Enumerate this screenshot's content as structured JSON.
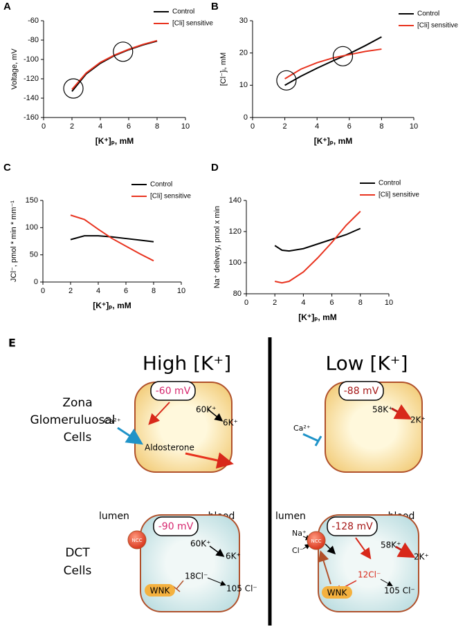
{
  "chart_data": [
    {
      "type": "line",
      "panel": "A",
      "y_label": "Voltage, mV",
      "x_label": "[K⁺]ₚ, mM",
      "x": [
        2,
        3,
        4,
        5,
        6,
        7,
        8
      ],
      "xlim": [
        0,
        10
      ],
      "xticks": [
        0,
        2,
        4,
        6,
        8,
        10
      ],
      "ylim": [
        -160,
        -60
      ],
      "yticks": [
        -160,
        -140,
        -120,
        -100,
        -80,
        -60
      ],
      "series": [
        {
          "name": "Control",
          "color": "#000000",
          "values": [
            -133,
            -115,
            -104,
            -96,
            -90,
            -85,
            -81
          ]
        },
        {
          "name": "[Cli] sensitive",
          "color": "#e8321e",
          "values": [
            -131,
            -114,
            -103,
            -95.5,
            -89.5,
            -84.5,
            -80.5
          ]
        }
      ],
      "highlights": {
        "x": [
          2.1,
          5.6
        ],
        "y": [
          -130,
          -92
        ]
      }
    },
    {
      "type": "line",
      "panel": "B",
      "y_label": "[Cl⁻]ᵢ, mM",
      "x_label": "[K⁺]ₚ, mM",
      "x": [
        2,
        3,
        4,
        5,
        6,
        7,
        8
      ],
      "xlim": [
        0,
        10
      ],
      "xticks": [
        0,
        2,
        4,
        6,
        8,
        10
      ],
      "ylim": [
        0,
        30
      ],
      "yticks": [
        0,
        10,
        20,
        30
      ],
      "series": [
        {
          "name": "Control",
          "color": "#000000",
          "values": [
            10,
            12.8,
            15.3,
            17.6,
            19.8,
            22.3,
            25
          ]
        },
        {
          "name": "[Cli] sensitive",
          "color": "#e8321e",
          "values": [
            12,
            15,
            17,
            18.5,
            19.5,
            20.5,
            21.2
          ]
        }
      ],
      "highlights": {
        "x": [
          2.1,
          5.6
        ],
        "y": [
          11.5,
          19
        ]
      }
    },
    {
      "type": "line",
      "panel": "C",
      "y_label": "JCl⁻, pmol * min * mm⁻¹",
      "x_label": "[K⁺]ₚ, mM",
      "x": [
        2,
        3,
        4,
        5,
        6,
        7,
        8
      ],
      "xlim": [
        0,
        10
      ],
      "xticks": [
        0,
        2,
        4,
        6,
        8,
        10
      ],
      "ylim": [
        0,
        150
      ],
      "yticks": [
        0,
        50,
        100,
        150
      ],
      "series": [
        {
          "name": "Control",
          "color": "#000000",
          "values": [
            78,
            85,
            85,
            83,
            80,
            77,
            74
          ]
        },
        {
          "name": "[Cli] sensitive",
          "color": "#e8321e",
          "values": [
            123,
            115,
            97,
            80,
            66,
            52,
            39
          ]
        }
      ]
    },
    {
      "type": "line",
      "panel": "D",
      "y_label": "Na⁺ delivery, pmol x min",
      "x_label": "[K⁺]ₚ, mM",
      "x": [
        2,
        2.5,
        3,
        4,
        5,
        6,
        7,
        8
      ],
      "xlim": [
        0,
        10
      ],
      "xticks": [
        0,
        2,
        4,
        6,
        8,
        10
      ],
      "ylim": [
        80,
        140
      ],
      "yticks": [
        80,
        100,
        120,
        140
      ],
      "series": [
        {
          "name": "Control",
          "color": "#000000",
          "values": [
            111,
            108,
            107.5,
            109,
            112,
            115,
            118,
            122
          ]
        },
        {
          "name": "[Cli] sensitive",
          "color": "#e8321e",
          "values": [
            88,
            87,
            88,
            94,
            103,
            113,
            124,
            133
          ]
        }
      ]
    }
  ],
  "diagram": {
    "panel": "E",
    "headings": [
      "High [K⁺]",
      "Low [K⁺]"
    ],
    "rows": [
      [
        "Zona",
        "Glomeruluosal",
        "Cells"
      ],
      [
        "DCT",
        "Cells"
      ]
    ],
    "cells": [
      {
        "voltage": "-60 mV",
        "k_in": "60K⁺",
        "k_out": "6K⁺",
        "calcium": "Ca²⁺",
        "hormone": "Aldosterone"
      },
      {
        "voltage": "-88 mV",
        "k_in": "58K⁺",
        "k_out": "2K⁺",
        "calcium": "Ca²⁺"
      },
      {
        "lumen": "lumen",
        "blood": "blood",
        "voltage": "-90 mV",
        "transporter": "NCC",
        "k_in": "60K⁺",
        "k_out": "6K⁺",
        "cl_in": "18Cl⁻",
        "cl_out": "105 Cl⁻",
        "kinase": "WNK"
      },
      {
        "lumen": "lumen",
        "blood": "blood",
        "voltage": "-128 mV",
        "transporter": "NCC",
        "sodium": "Na⁺",
        "chloride": "Cl⁻",
        "k_in": "58K⁺",
        "k_out": "2K⁺",
        "cl_in": "12Cl⁻",
        "cl_out": "105 Cl⁻",
        "kinase": "WNK"
      }
    ]
  }
}
